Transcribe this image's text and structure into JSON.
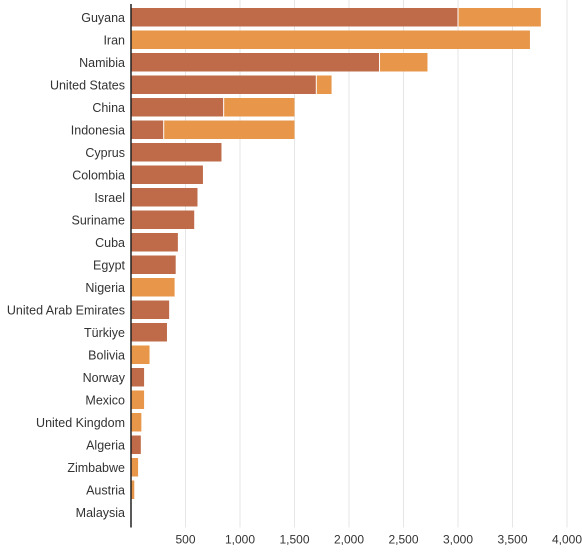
{
  "colors": {
    "series1": "#bf6b4a",
    "series2": "#e8964a",
    "grid": "#e6e6e6",
    "axis": "#222222"
  },
  "chart_data": {
    "type": "bar",
    "orientation": "horizontal",
    "stacked": true,
    "categories": [
      "Guyana",
      "Iran",
      "Namibia",
      "United States",
      "China",
      "Indonesia",
      "Cyprus",
      "Colombia",
      "Israel",
      "Suriname",
      "Cuba",
      "Egypt",
      "Nigeria",
      "United Arab Emirates",
      "Türkiye",
      "Bolivia",
      "Norway",
      "Mexico",
      "United Kingdom",
      "Algeria",
      "Zimbabwe",
      "Austria",
      "Malaysia"
    ],
    "series": [
      {
        "values": [
          3000,
          0,
          2280,
          1700,
          850,
          300,
          830,
          660,
          610,
          580,
          430,
          410,
          0,
          350,
          330,
          0,
          120,
          0,
          0,
          90,
          0,
          0,
          0
        ]
      },
      {
        "values": [
          760,
          3660,
          440,
          140,
          650,
          1200,
          0,
          0,
          0,
          0,
          0,
          0,
          400,
          0,
          0,
          170,
          0,
          120,
          95,
          0,
          65,
          30,
          0
        ]
      }
    ],
    "xlim": [
      0,
      4000
    ],
    "xticks": [
      "500",
      "1,000",
      "1,500",
      "2,000",
      "2,500",
      "3,000",
      "3,500",
      "4,000"
    ],
    "xtick_values": [
      500,
      1000,
      1500,
      2000,
      2500,
      3000,
      3500,
      4000
    ],
    "grid": true,
    "title": "",
    "xlabel": "",
    "ylabel": ""
  }
}
